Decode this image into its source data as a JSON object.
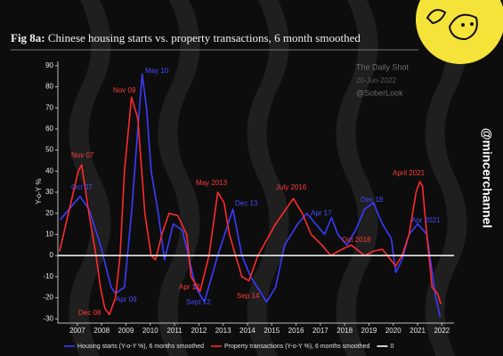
{
  "chart_data": {
    "type": "line",
    "title_prefix": "Fig 8a:",
    "title": "Chinese housing starts vs. property transactions, 6 month smoothed",
    "ylabel": "Y-o-Y %",
    "watermark": [
      "The Daily Shot",
      "20-Jun-2022",
      "@SoberLook"
    ],
    "channel": "@mincerchannel",
    "xlim": [
      2006.2,
      2022.5
    ],
    "ylim": [
      -32,
      92
    ],
    "xticks": [
      2007,
      2008,
      2009,
      2010,
      2011,
      2012,
      2013,
      2014,
      2015,
      2016,
      2017,
      2018,
      2019,
      2020,
      2021,
      2022
    ],
    "yticks": [
      -30,
      -20,
      -10,
      0,
      10,
      20,
      30,
      40,
      50,
      60,
      70,
      80,
      90
    ],
    "zero_line": {
      "name": "0",
      "value": 0,
      "color": "#ffffff"
    },
    "series": [
      {
        "name": "Housing starts (Y-o-Y %), 6 months smoothed",
        "color": "#3b3bff",
        "x": [
          2006.3,
          2007.11,
          2007.48,
          2007.95,
          2008.39,
          2008.57,
          2008.94,
          2009.23,
          2009.49,
          2009.67,
          2009.85,
          2010.04,
          2010.33,
          2010.59,
          2010.95,
          2011.32,
          2011.57,
          2011.87,
          2012.23,
          2012.78,
          2013.4,
          2013.77,
          2014.13,
          2014.79,
          2015.16,
          2015.53,
          2016.07,
          2016.44,
          2016.81,
          2017.17,
          2017.46,
          2017.72,
          2018.09,
          2018.45,
          2018.82,
          2019.18,
          2019.55,
          2019.92,
          2020.1,
          2020.36,
          2020.65,
          2021.01,
          2021.38,
          2021.75,
          2021.93
        ],
        "values": [
          17,
          28,
          22,
          5,
          -15,
          -18,
          -15,
          20,
          60,
          86,
          70,
          40,
          20,
          -2,
          15,
          12,
          0,
          -15,
          -22,
          0,
          22,
          0,
          -10,
          -22,
          -15,
          5,
          15,
          20,
          15,
          10,
          18,
          10,
          5,
          12,
          22,
          25,
          15,
          8,
          -8,
          -2,
          10,
          15,
          10,
          -20,
          -29
        ]
      },
      {
        "name": "Property transactions (Y-o-Y %), 6 months smoothed",
        "color": "#ff2a2a",
        "x": [
          2006.27,
          2007.04,
          2007.18,
          2007.48,
          2007.77,
          2007.95,
          2008.13,
          2008.32,
          2008.57,
          2008.76,
          2008.94,
          2009.23,
          2009.49,
          2009.78,
          2010.04,
          2010.22,
          2010.48,
          2010.77,
          2011.13,
          2011.5,
          2011.68,
          2012.05,
          2012.42,
          2012.78,
          2013.04,
          2013.26,
          2013.51,
          2013.77,
          2014.06,
          2014.43,
          2015.16,
          2015.89,
          2016.26,
          2016.62,
          2017.06,
          2017.43,
          2017.9,
          2018.27,
          2018.82,
          2019.18,
          2019.55,
          2020.1,
          2020.36,
          2020.65,
          2020.94,
          2021.09,
          2021.2,
          2021.38,
          2021.6,
          2021.82,
          2021.96
        ],
        "values": [
          2,
          40,
          43,
          20,
          0,
          -15,
          -25,
          -28,
          -20,
          0,
          40,
          75,
          65,
          20,
          0,
          -2,
          10,
          20,
          19,
          10,
          -10,
          -17,
          0,
          30,
          25,
          10,
          0,
          -10,
          -12,
          0,
          15,
          27,
          20,
          10,
          5,
          0,
          3,
          5,
          0,
          2,
          3,
          -5,
          0,
          10,
          30,
          35,
          33,
          10,
          -15,
          -18,
          -23
        ]
      }
    ],
    "annotations": [
      {
        "text": "Nov 07",
        "color": "#ff3a3a"
      },
      {
        "text": "Dec 08",
        "color": "#ff3a3a"
      },
      {
        "text": "Nov 09",
        "color": "#ff3a3a"
      },
      {
        "text": "Apr 12",
        "color": "#ff3a3a"
      },
      {
        "text": "May 2013",
        "color": "#ff3a3a"
      },
      {
        "text": "Sep 14",
        "color": "#ff3a3a"
      },
      {
        "text": "July 2016",
        "color": "#ff3a3a"
      },
      {
        "text": "Oct 2018",
        "color": "#ff3a3a"
      },
      {
        "text": "April 2021",
        "color": "#ff3a3a"
      },
      {
        "text": "Oct 07",
        "color": "#4a4aff"
      },
      {
        "text": "May 10",
        "color": "#4a4aff"
      },
      {
        "text": "Apr 09",
        "color": "#4a4aff"
      },
      {
        "text": "Sept 12",
        "color": "#4a4aff"
      },
      {
        "text": "Dec 13",
        "color": "#4a4aff"
      },
      {
        "text": "Apr 17",
        "color": "#4a4aff"
      },
      {
        "text": "Dec 18",
        "color": "#4a4aff"
      },
      {
        "text": "Apr 2021",
        "color": "#4a4aff"
      }
    ]
  }
}
